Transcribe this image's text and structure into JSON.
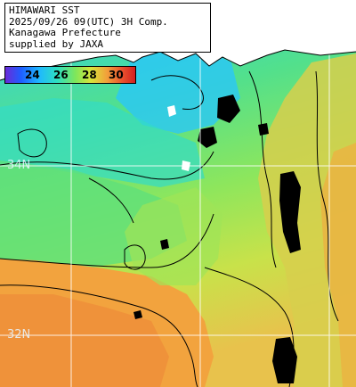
{
  "header": {
    "line1": "HIMAWARI SST",
    "line2": "2025/09/26 09(UTC) 3H Comp.",
    "line3": "Kanagawa Prefecture",
    "line4": "supplied by JAXA"
  },
  "color_scale": {
    "labels": [
      "24",
      "26",
      "28",
      "30"
    ],
    "colors": {
      "c23": "#3b52f0",
      "c24": "#1fb0ff",
      "c25": "#28d8e6",
      "c26": "#38e0b0",
      "c27": "#7ce65e",
      "c28": "#d2e445",
      "c29": "#f0a43c",
      "c30": "#e6542c"
    }
  },
  "grid_labels": {
    "lat_34": "34N",
    "lat_32": "32N"
  },
  "colors": {
    "land": "#ffffff",
    "missing": "#000000",
    "grid": "#ffffff"
  }
}
